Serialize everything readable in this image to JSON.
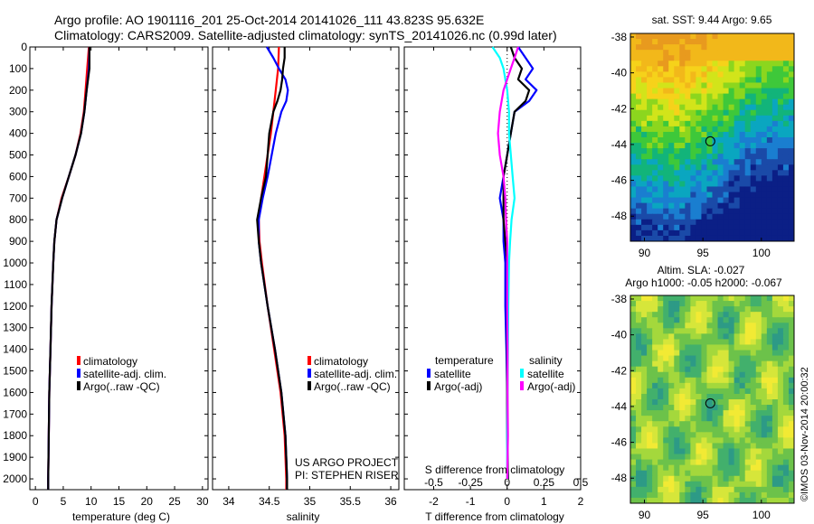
{
  "header": {
    "line1": "Argo profile: AO 1901116_201 25-Oct-2014 20141026_111 43.823S 95.632E",
    "line2": "Climatology: CARS2009. Satellite-adjusted climatology: synTS_20141026.nc (0.99d later)"
  },
  "colors": {
    "climatology": "#ff0000",
    "satellite": "#0000ff",
    "argo": "#000000",
    "sal_satellite": "#00ffff",
    "sal_argo": "#ff00ff"
  },
  "chart_data": [
    {
      "type": "line",
      "panel": "temperature",
      "xlabel": "temperature (deg C)",
      "xlim": [
        -1,
        31
      ],
      "xticks": [
        0,
        5,
        10,
        15,
        20,
        25,
        30
      ],
      "ylim": [
        0,
        2050
      ],
      "yticks": [
        0,
        100,
        200,
        300,
        400,
        500,
        600,
        700,
        800,
        900,
        1000,
        1100,
        1200,
        1300,
        1400,
        1500,
        1600,
        1700,
        1800,
        1900,
        2000
      ],
      "legend": [
        "climatology",
        "satellite-adj. clim.",
        "Argo(..raw -QC)"
      ],
      "legend_colors": [
        "#ff0000",
        "#0000ff",
        "#000000"
      ],
      "series": [
        {
          "name": "climatology",
          "color": "#ff0000",
          "depth": [
            0,
            100,
            200,
            300,
            400,
            500,
            600,
            700,
            800,
            900,
            1000,
            1200,
            1400,
            1600,
            1800,
            2000,
            2050
          ],
          "values": [
            9.6,
            9.3,
            9.0,
            8.7,
            8.1,
            7.2,
            6.0,
            4.7,
            3.8,
            3.4,
            3.2,
            2.9,
            2.7,
            2.5,
            2.4,
            2.3,
            2.3
          ]
        },
        {
          "name": "satellite-adj. clim.",
          "color": "#0000ff",
          "depth": [
            0,
            100,
            200,
            300,
            400,
            500,
            600,
            700,
            800,
            900,
            1000,
            1200,
            1400,
            1600,
            1800,
            2000,
            2050
          ],
          "values": [
            9.7,
            9.6,
            9.2,
            8.8,
            8.2,
            7.2,
            6.0,
            4.8,
            3.8,
            3.4,
            3.2,
            2.9,
            2.7,
            2.5,
            2.4,
            2.3,
            2.3
          ]
        },
        {
          "name": "Argo(..raw -QC)",
          "color": "#000000",
          "depth": [
            0,
            100,
            200,
            300,
            400,
            500,
            600,
            700,
            800,
            900,
            1000,
            1200,
            1400,
            1600,
            1800,
            2000,
            2050
          ],
          "values": [
            9.7,
            9.7,
            9.2,
            8.8,
            8.2,
            7.2,
            6.0,
            4.8,
            3.8,
            3.4,
            3.2,
            2.9,
            2.7,
            2.5,
            2.4,
            2.3,
            2.3
          ]
        }
      ]
    },
    {
      "type": "line",
      "panel": "salinity",
      "xlabel": "salinity",
      "xlim": [
        33.8,
        36.1
      ],
      "xticks": [
        34,
        34.5,
        35,
        35.5,
        36
      ],
      "ylim": [
        0,
        2050
      ],
      "legend": [
        "climatology",
        "satellite-adj. clim.",
        "Argo(..raw -QC)"
      ],
      "legend_colors": [
        "#ff0000",
        "#0000ff",
        "#000000"
      ],
      "annotation": [
        "US ARGO PROJECT",
        "PI: STEPHEN RISER"
      ],
      "series": [
        {
          "name": "climatology",
          "color": "#ff0000",
          "depth": [
            0,
            100,
            200,
            300,
            400,
            500,
            600,
            700,
            800,
            900,
            1000,
            1200,
            1400,
            1600,
            1800,
            2000,
            2050
          ],
          "values": [
            34.62,
            34.61,
            34.58,
            34.55,
            34.52,
            34.48,
            34.44,
            34.4,
            34.37,
            34.38,
            34.41,
            34.48,
            34.56,
            34.64,
            34.69,
            34.71,
            34.71
          ]
        },
        {
          "name": "satellite-adj. clim.",
          "color": "#0000ff",
          "depth": [
            0,
            50,
            100,
            150,
            200,
            250,
            300,
            400,
            500,
            600,
            700,
            800,
            900,
            1000,
            1200,
            1400,
            1600,
            1800,
            2000,
            2050
          ],
          "values": [
            34.47,
            34.55,
            34.62,
            34.7,
            34.73,
            34.71,
            34.65,
            34.58,
            34.53,
            34.48,
            34.42,
            34.37,
            34.37,
            34.4,
            34.48,
            34.57,
            34.65,
            34.7,
            34.72,
            34.72
          ]
        },
        {
          "name": "Argo(..raw -QC)",
          "color": "#000000",
          "depth": [
            0,
            50,
            100,
            150,
            200,
            250,
            300,
            400,
            500,
            600,
            700,
            800,
            900,
            1000,
            1200,
            1400,
            1600,
            1800,
            2000,
            2050
          ],
          "values": [
            34.69,
            34.69,
            34.67,
            34.66,
            34.64,
            34.6,
            34.55,
            34.5,
            34.48,
            34.46,
            34.4,
            34.35,
            34.37,
            34.4,
            34.48,
            34.57,
            34.65,
            34.7,
            34.72,
            34.72
          ]
        }
      ]
    },
    {
      "type": "line",
      "panel": "difference",
      "xlabel": "T difference from climatology",
      "xlabel2": "S difference from climatology",
      "xlim": [
        -2.8,
        2.0
      ],
      "xticks": [
        -2,
        -1,
        0,
        1,
        2
      ],
      "xticks2": [
        "-0.5",
        "-0.25",
        "0",
        "0.25",
        "0.5"
      ],
      "ylim": [
        0,
        2050
      ],
      "legend_headers": [
        "temperature",
        "salinity"
      ],
      "legend": [
        "satellite",
        "Argo(-adj)",
        "satellite",
        "Argo(-adj)"
      ],
      "legend_colors": [
        "#0000ff",
        "#000000",
        "#00ffff",
        "#ff00ff"
      ],
      "series": [
        {
          "name": "temperature satellite",
          "color": "#0000ff",
          "depth": [
            0,
            50,
            100,
            150,
            200,
            250,
            300,
            400,
            500,
            600,
            700,
            800,
            900,
            1000,
            1200,
            1400,
            1600,
            1800,
            2000
          ],
          "values": [
            0.3,
            0.5,
            0.7,
            0.5,
            0.8,
            0.6,
            0.2,
            0.1,
            0.0,
            -0.1,
            -0.2,
            -0.1,
            -0.1,
            -0.05,
            -0.05,
            -0.02,
            0.0,
            0.0,
            0.02
          ]
        },
        {
          "name": "temperature Argo(-adj)",
          "color": "#000000",
          "depth": [
            0,
            50,
            100,
            150,
            200,
            250,
            300,
            400,
            500,
            600,
            700,
            800,
            900,
            1000,
            1200,
            1400,
            1600,
            1800,
            2000
          ],
          "values": [
            0.1,
            0.2,
            0.4,
            0.3,
            0.6,
            0.5,
            0.2,
            0.1,
            0.0,
            -0.1,
            -0.1,
            -0.1,
            -0.05,
            0.0,
            0.0,
            0.0,
            0.0,
            0.0,
            0.02
          ]
        },
        {
          "name": "salinity satellite",
          "color": "#00ffff",
          "depth": [
            0,
            50,
            100,
            200,
            300,
            400,
            500,
            600,
            700,
            800,
            900,
            1000,
            1200,
            1400,
            1600,
            1800,
            2000
          ],
          "values": [
            -0.4,
            -0.2,
            -0.1,
            0.0,
            0.05,
            0.05,
            0.1,
            0.15,
            0.2,
            0.12,
            0.08,
            0.05,
            0.03,
            0.02,
            0.01,
            0.0,
            0.0
          ]
        },
        {
          "name": "salinity Argo(-adj)",
          "color": "#ff00ff",
          "depth": [
            0,
            50,
            100,
            200,
            300,
            400,
            500,
            600,
            700,
            800,
            900,
            1000,
            1200,
            1400,
            1600,
            1800,
            2000
          ],
          "values": [
            0.3,
            0.2,
            0.1,
            -0.1,
            -0.2,
            -0.25,
            -0.2,
            -0.1,
            -0.05,
            -0.03,
            0.0,
            0.0,
            0.0,
            0.01,
            0.01,
            0.02,
            0.0
          ]
        }
      ]
    },
    {
      "type": "heatmap",
      "panel": "sst_map",
      "title": "sat. SST: 9.44 Argo: 9.65",
      "xticks": [
        90,
        95,
        100
      ],
      "yticks": [
        -38,
        -40,
        -42,
        -44,
        -46,
        -48
      ],
      "xlim": [
        88.8,
        102.8
      ],
      "ylim": [
        -49.4,
        -37.8
      ],
      "marker": {
        "lon": 95.632,
        "lat": -43.823
      }
    },
    {
      "type": "heatmap",
      "panel": "sla_map",
      "title": "Altim. SLA: -0.027",
      "subtitle": "Argo h1000: -0.05 h2000: -0.067",
      "xticks": [
        90,
        95,
        100
      ],
      "yticks": [
        -38,
        -40,
        -42,
        -44,
        -46,
        -48
      ],
      "xlim": [
        88.8,
        102.8
      ],
      "ylim": [
        -49.4,
        -37.8
      ],
      "marker": {
        "lon": 95.632,
        "lat": -43.823
      }
    }
  ],
  "footer": {
    "credit": "©IMOS 03-Nov-2014 20:00:32"
  }
}
